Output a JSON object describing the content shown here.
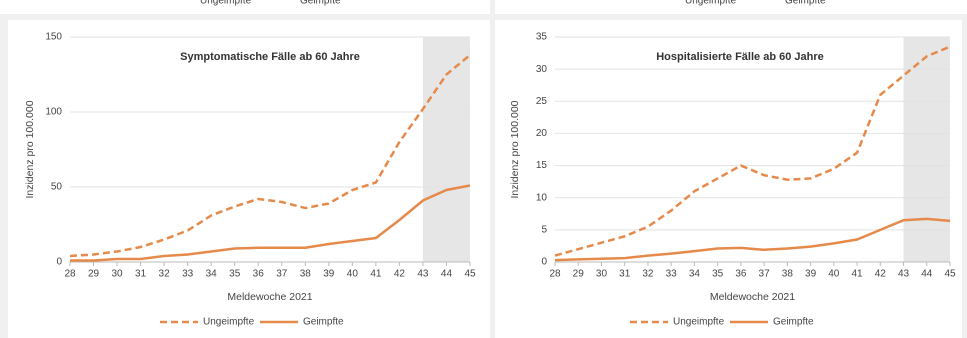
{
  "header_legend": {
    "items": [
      "Ungeimpfte",
      "Geimpfte"
    ]
  },
  "chart_data": [
    {
      "type": "line",
      "title": "Symptomatische Fälle ab 60 Jahre",
      "x_label": "Meldewoche 2021",
      "y_label": "Inzidenz pro 100.000",
      "x": [
        28,
        29,
        30,
        31,
        32,
        33,
        34,
        35,
        36,
        37,
        38,
        39,
        40,
        41,
        42,
        43,
        44,
        45
      ],
      "xlim": [
        28,
        45
      ],
      "xticks": [
        28,
        29,
        30,
        31,
        32,
        33,
        34,
        35,
        36,
        37,
        38,
        39,
        40,
        41,
        42,
        43,
        44,
        45
      ],
      "ylim": [
        0,
        150
      ],
      "yticks": [
        0,
        50,
        100,
        150
      ],
      "grid": true,
      "shaded_x": [
        43,
        45
      ],
      "series": [
        {
          "name": "Ungeimpfte",
          "color": "#e58a4a",
          "style": "dashed",
          "values": [
            4,
            5,
            7,
            10,
            15,
            21,
            31,
            37,
            42,
            40,
            36,
            39,
            48,
            53,
            80,
            102,
            125,
            138
          ]
        },
        {
          "name": "Geimpfte",
          "color": "#e58a4a",
          "style": "solid",
          "values": [
            1,
            1,
            2,
            2,
            4,
            5,
            7,
            9,
            9.5,
            9.5,
            9.5,
            12,
            14,
            16,
            28,
            41,
            48,
            51
          ]
        }
      ]
    },
    {
      "type": "line",
      "title": "Hospitalisierte Fälle ab 60 Jahre",
      "x_label": "Meldewoche 2021",
      "y_label": "Inzidenz pro 100.000",
      "x": [
        28,
        29,
        30,
        31,
        32,
        33,
        34,
        35,
        36,
        37,
        38,
        39,
        40,
        41,
        42,
        43,
        44,
        45
      ],
      "xlim": [
        28,
        45
      ],
      "xticks": [
        28,
        29,
        30,
        31,
        32,
        33,
        34,
        35,
        36,
        37,
        38,
        39,
        40,
        41,
        42,
        43,
        44,
        45
      ],
      "ylim": [
        0,
        35
      ],
      "yticks": [
        0,
        5,
        10,
        15,
        20,
        25,
        30,
        35
      ],
      "grid": true,
      "shaded_x": [
        43,
        45
      ],
      "series": [
        {
          "name": "Ungeimpfte",
          "color": "#e58a4a",
          "style": "dashed",
          "values": [
            1,
            2,
            3,
            4,
            5.5,
            8,
            11,
            13,
            15,
            13.5,
            12.8,
            13,
            14.5,
            17,
            26,
            29,
            32,
            33.5
          ]
        },
        {
          "name": "Geimpfte",
          "color": "#e58a4a",
          "style": "solid",
          "values": [
            0.3,
            0.4,
            0.5,
            0.6,
            1.0,
            1.3,
            1.7,
            2.1,
            2.2,
            1.9,
            2.1,
            2.4,
            2.9,
            3.5,
            5.0,
            6.5,
            6.7,
            6.4
          ]
        }
      ]
    }
  ]
}
